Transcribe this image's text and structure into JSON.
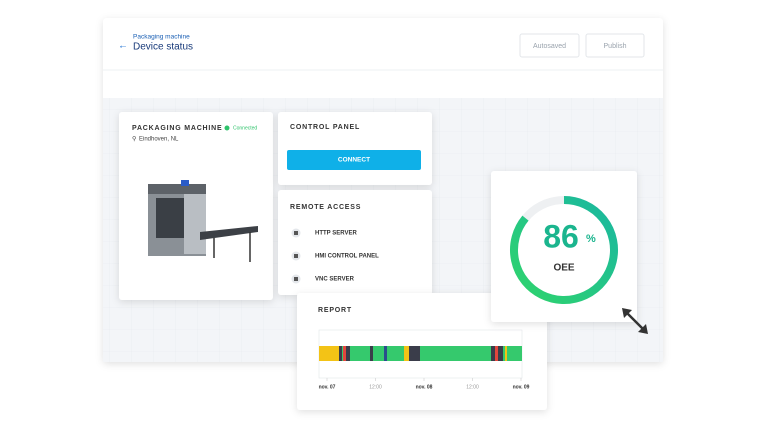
{
  "header": {
    "breadcrumb": "Packaging machine",
    "title": "Device status",
    "buttons": [
      "Autosaved",
      "Publish"
    ]
  },
  "machine": {
    "title": "PACKAGING MACHINE",
    "status": "Connected",
    "location": "Eindhoven, NL"
  },
  "control_panel": {
    "title": "CONTROL PANEL",
    "button": "CONNECT"
  },
  "remote_access": {
    "title": "REMOTE ACCESS",
    "items": [
      "HTTP SERVER",
      "HMI CONTROL PANEL",
      "VNC SERVER"
    ]
  },
  "gauge": {
    "value": 86,
    "unit": "%",
    "label": "OEE"
  },
  "report": {
    "title": "REPORT",
    "ticks": [
      "nov. 07",
      "12:00",
      "nov. 08",
      "12:00",
      "nov. 09"
    ]
  }
}
